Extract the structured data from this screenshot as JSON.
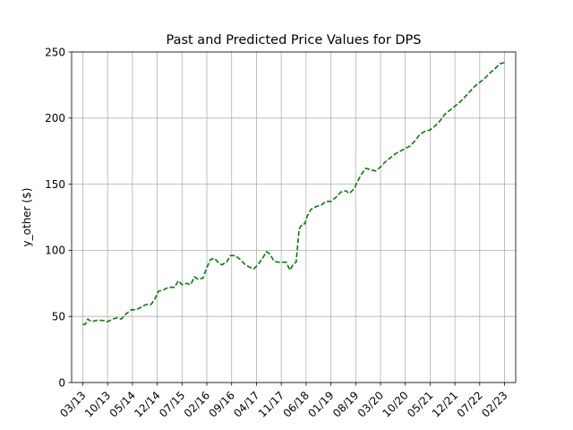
{
  "chart_data": {
    "type": "line",
    "title": "Past and Predicted Price Values for DPS",
    "xlabel": "",
    "ylabel": "y_other ($)",
    "ylim": [
      0,
      250
    ],
    "yticks": [
      0,
      50,
      100,
      150,
      200,
      250
    ],
    "xlim": [
      -0.45,
      17.45
    ],
    "xticks": [
      "03/13",
      "10/13",
      "05/14",
      "12/14",
      "07/15",
      "02/16",
      "09/16",
      "04/17",
      "11/17",
      "06/18",
      "01/19",
      "08/19",
      "03/20",
      "10/20",
      "05/21",
      "12/21",
      "07/22",
      "02/23"
    ],
    "grid": true,
    "legend": "none",
    "series": [
      {
        "color": "#008000",
        "linestyle": "dashed",
        "points": [
          [
            0.0,
            44
          ],
          [
            0.1,
            44
          ],
          [
            0.2,
            48
          ],
          [
            0.35,
            46
          ],
          [
            0.55,
            47
          ],
          [
            0.8,
            47
          ],
          [
            1.0,
            46
          ],
          [
            1.2,
            48
          ],
          [
            1.4,
            49
          ],
          [
            1.55,
            48
          ],
          [
            1.75,
            52
          ],
          [
            1.95,
            55
          ],
          [
            2.15,
            55
          ],
          [
            2.35,
            57
          ],
          [
            2.55,
            59
          ],
          [
            2.75,
            59
          ],
          [
            2.9,
            63
          ],
          [
            3.05,
            69
          ],
          [
            3.25,
            70
          ],
          [
            3.45,
            72
          ],
          [
            3.7,
            72
          ],
          [
            3.85,
            77
          ],
          [
            4.0,
            74
          ],
          [
            4.2,
            75
          ],
          [
            4.35,
            74
          ],
          [
            4.5,
            80
          ],
          [
            4.65,
            78
          ],
          [
            4.85,
            79
          ],
          [
            5.0,
            87
          ],
          [
            5.15,
            93
          ],
          [
            5.3,
            94
          ],
          [
            5.45,
            91
          ],
          [
            5.6,
            89
          ],
          [
            5.8,
            91
          ],
          [
            5.95,
            96
          ],
          [
            6.15,
            96
          ],
          [
            6.35,
            93
          ],
          [
            6.55,
            89
          ],
          [
            6.75,
            87
          ],
          [
            6.9,
            86
          ],
          [
            7.05,
            89
          ],
          [
            7.25,
            94
          ],
          [
            7.4,
            99
          ],
          [
            7.55,
            97
          ],
          [
            7.7,
            92
          ],
          [
            7.85,
            91
          ],
          [
            8.0,
            91
          ],
          [
            8.2,
            91
          ],
          [
            8.35,
            85
          ],
          [
            8.5,
            90
          ],
          [
            8.6,
            91
          ],
          [
            8.72,
            116
          ],
          [
            8.85,
            120
          ],
          [
            8.95,
            120
          ],
          [
            9.05,
            126
          ],
          [
            9.2,
            131
          ],
          [
            9.4,
            133
          ],
          [
            9.6,
            134
          ],
          [
            9.8,
            137
          ],
          [
            10.0,
            137
          ],
          [
            10.2,
            140
          ],
          [
            10.4,
            144
          ],
          [
            10.6,
            145
          ],
          [
            10.75,
            143
          ],
          [
            10.95,
            147
          ],
          [
            11.1,
            153
          ],
          [
            11.25,
            158
          ],
          [
            11.4,
            162
          ],
          [
            11.6,
            161
          ],
          [
            11.8,
            160
          ],
          [
            12.0,
            163
          ],
          [
            12.2,
            167
          ],
          [
            12.4,
            170
          ],
          [
            12.6,
            173
          ],
          [
            12.8,
            175
          ],
          [
            13.0,
            177
          ],
          [
            13.2,
            179
          ],
          [
            13.4,
            183
          ],
          [
            13.6,
            188
          ],
          [
            13.8,
            190
          ],
          [
            14.0,
            191
          ],
          [
            14.2,
            194
          ],
          [
            14.4,
            198
          ],
          [
            14.6,
            203
          ],
          [
            14.8,
            206
          ],
          [
            15.0,
            209
          ],
          [
            15.2,
            212
          ],
          [
            15.4,
            216
          ],
          [
            15.6,
            220
          ],
          [
            15.8,
            224
          ],
          [
            16.0,
            227
          ],
          [
            16.2,
            230
          ],
          [
            16.4,
            234
          ],
          [
            16.6,
            237
          ],
          [
            16.8,
            241
          ],
          [
            17.0,
            242
          ]
        ]
      }
    ]
  }
}
